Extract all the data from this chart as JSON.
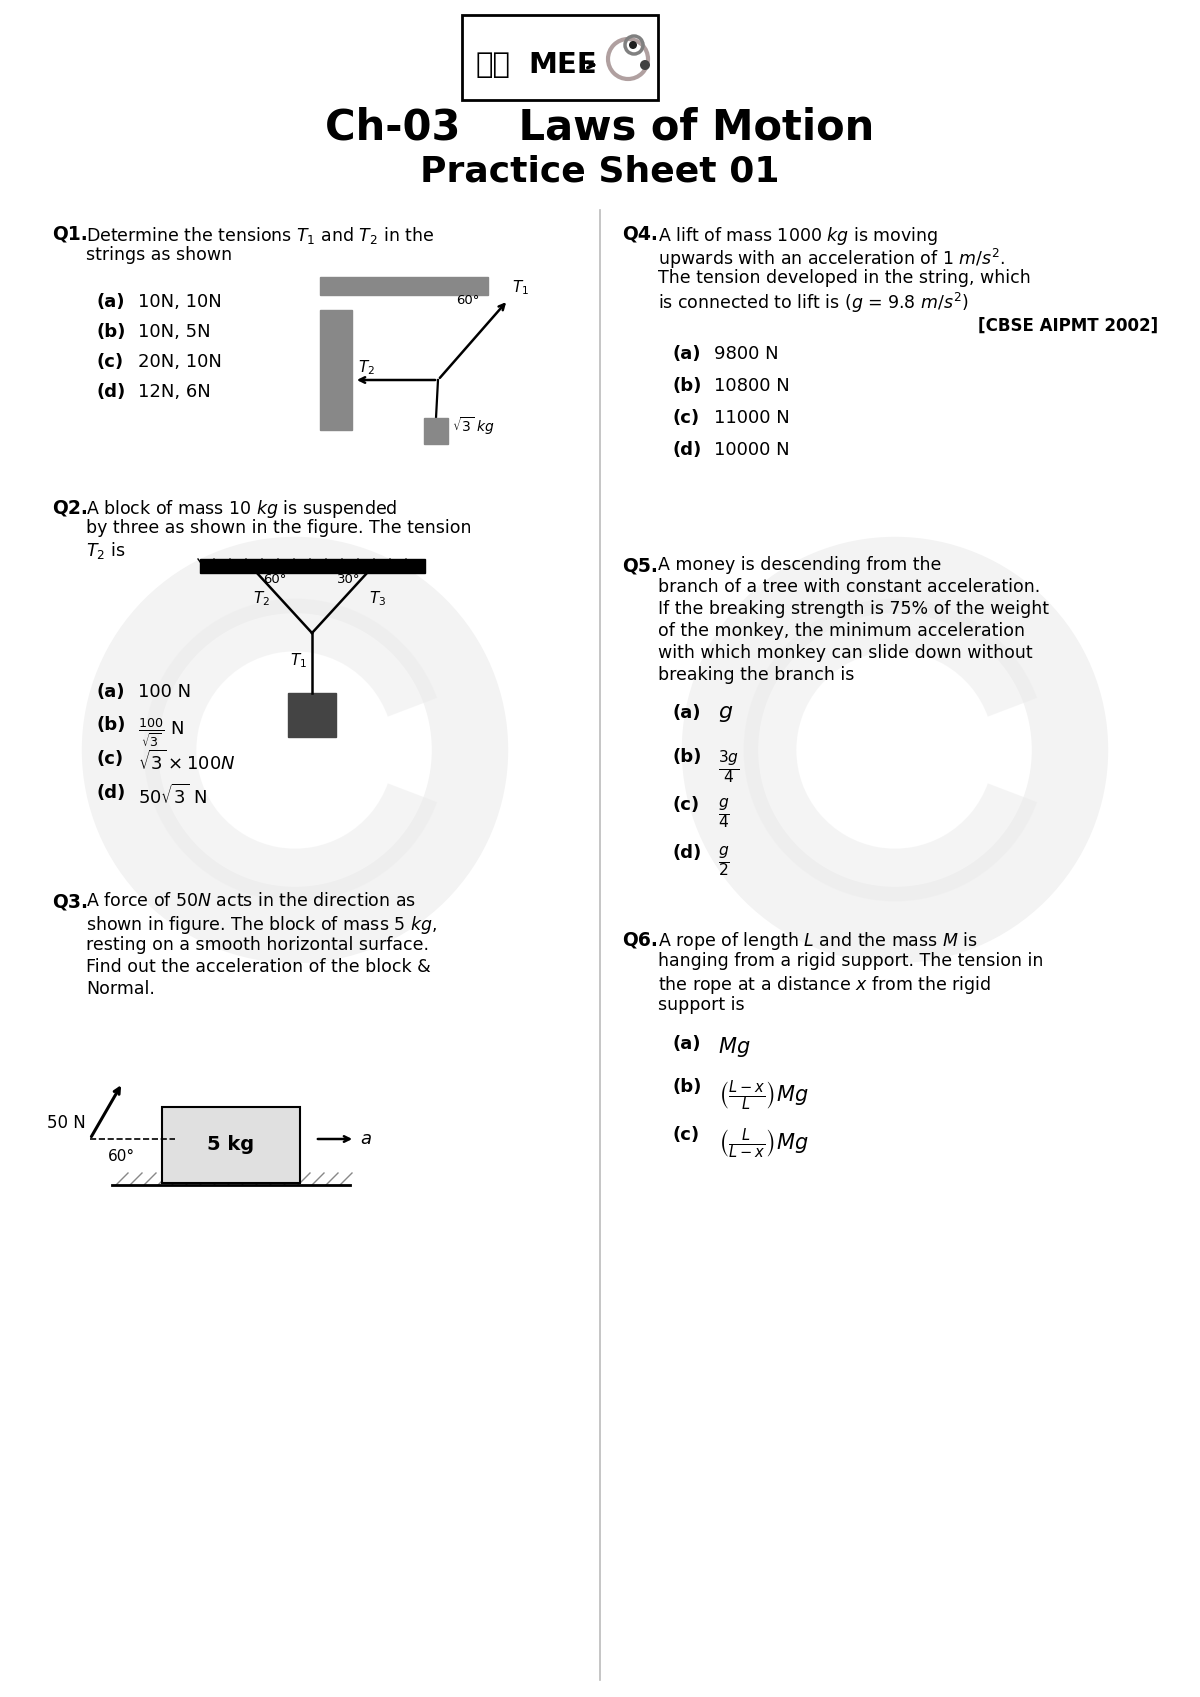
{
  "title_chapter": "Ch-03    Laws of Motion",
  "title_sheet": "Practice Sheet 01",
  "bg_color": "#ffffff",
  "q1": {
    "label": "Q1.",
    "text1": "Determine the tensions $T_1$ and $T_2$ in the",
    "text2": "strings as shown",
    "options": [
      [
        "(a)",
        "10N, 10N"
      ],
      [
        "(b)",
        "10N, 5N"
      ],
      [
        "(c)",
        "20N, 10N"
      ],
      [
        "(d)",
        "12N, 6N"
      ]
    ]
  },
  "q2": {
    "label": "Q2.",
    "text1": "A block of mass 10 $kg$ is suspended",
    "text2": "by three as shown in the figure. The tension",
    "text3": "$T_2$ is",
    "options": [
      [
        "(a)",
        "100 N"
      ],
      [
        "(b)",
        "$\\frac{100}{\\sqrt{3}}$ N"
      ],
      [
        "(c)",
        "$\\sqrt{3} \\times 100N$"
      ],
      [
        "(d)",
        "$50\\sqrt{3}$ N"
      ]
    ]
  },
  "q3": {
    "label": "Q3.",
    "lines": [
      "A force of 50$N$ acts in the direction as",
      "shown in figure. The block of mass 5 $kg$,",
      "resting on a smooth horizontal surface.",
      "Find out the acceleration of the block &",
      "Normal."
    ]
  },
  "q4": {
    "label": "Q4.",
    "lines": [
      "A lift of mass 1000 $kg$ is moving",
      "upwards with an acceleration of 1 $m/s^2$.",
      "The tension developed in the string, which",
      "is connected to lift is ($g$ = 9.8 $m/s^2$)"
    ],
    "cbse": "[CBSE AIPMT 2002]",
    "options": [
      [
        "(a)",
        "9800 N"
      ],
      [
        "(b)",
        "10800 N"
      ],
      [
        "(c)",
        "11000 N"
      ],
      [
        "(d)",
        "10000 N"
      ]
    ]
  },
  "q5": {
    "label": "Q5.",
    "lines": [
      "A money is descending from the",
      "branch of a tree with constant acceleration.",
      "If the breaking strength is 75% of the weight",
      "of the monkey, the minimum acceleration",
      "with which monkey can slide down without",
      "breaking the branch is"
    ],
    "options": [
      [
        "(a)",
        "$g$"
      ],
      [
        "(b)",
        "$\\frac{3g}{4}$"
      ],
      [
        "(c)",
        "$\\frac{g}{4}$"
      ],
      [
        "(d)",
        "$\\frac{g}{2}$"
      ]
    ]
  },
  "q6": {
    "label": "Q6.",
    "lines": [
      "A rope of length $L$ and the mass $M$ is",
      "hanging from a rigid support. The tension in",
      "the rope at a distance $x$ from the rigid",
      "support is"
    ],
    "options": [
      [
        "(a)",
        "$Mg$"
      ],
      [
        "(b)",
        "$\\left(\\frac{L-x}{L}\\right)Mg$"
      ],
      [
        "(c)",
        "$\\left(\\frac{L}{L-x}\\right)Mg$"
      ]
    ]
  }
}
